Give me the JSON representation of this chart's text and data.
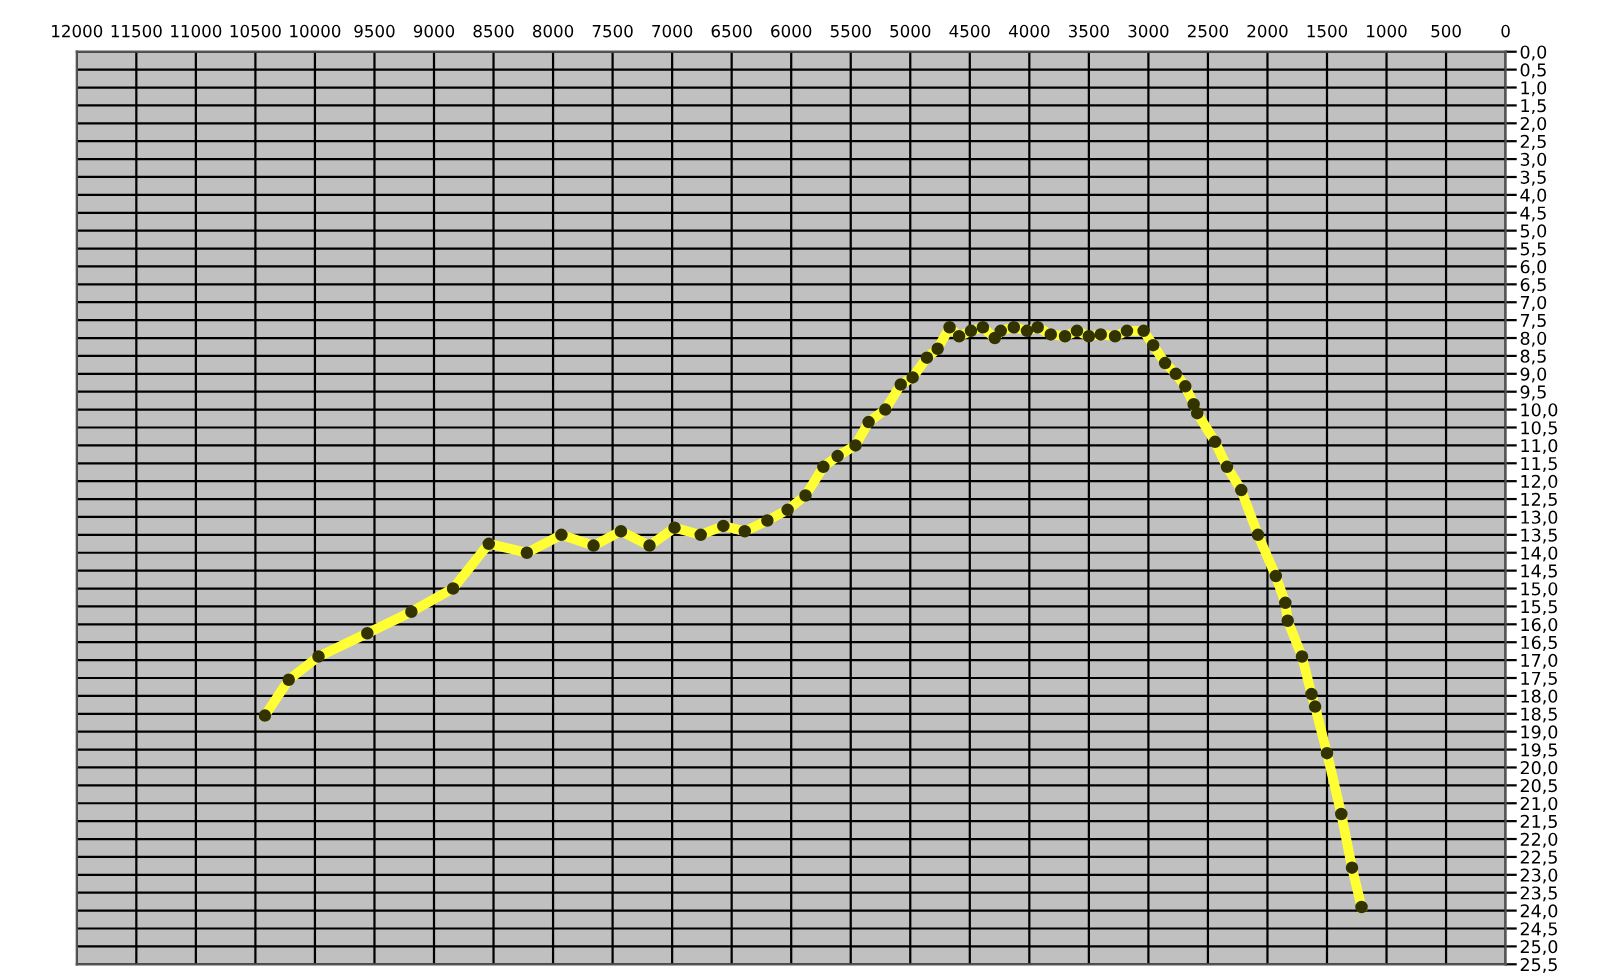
{
  "chart_data": {
    "type": "line",
    "marker": "circle",
    "line_style": "solid",
    "grid": true,
    "legend": false,
    "xlim": [
      12000,
      0
    ],
    "ylim": [
      25.5,
      0
    ],
    "xticks": [
      12000,
      11500,
      11000,
      10500,
      10000,
      9500,
      9000,
      8500,
      8000,
      7500,
      7000,
      6500,
      6000,
      5500,
      5000,
      4500,
      4000,
      3500,
      3000,
      2500,
      2000,
      1500,
      1000,
      500,
      0
    ],
    "yticks": [
      {
        "value": 0,
        "label": "0,0"
      },
      {
        "value": 0.5,
        "label": "0,5"
      },
      {
        "value": 1,
        "label": "1,0"
      },
      {
        "value": 1.5,
        "label": "1,5"
      },
      {
        "value": 2,
        "label": "2,0"
      },
      {
        "value": 2.5,
        "label": "2,5"
      },
      {
        "value": 3,
        "label": "3,0"
      },
      {
        "value": 3.5,
        "label": "3,5"
      },
      {
        "value": 4,
        "label": "4,0"
      },
      {
        "value": 4.5,
        "label": "4,5"
      },
      {
        "value": 5,
        "label": "5,0"
      },
      {
        "value": 5.5,
        "label": "5,5"
      },
      {
        "value": 6,
        "label": "6,0"
      },
      {
        "value": 6.5,
        "label": "6,5"
      },
      {
        "value": 7,
        "label": "7,0"
      },
      {
        "value": 7.5,
        "label": "7,5"
      },
      {
        "value": 8,
        "label": "8,0"
      },
      {
        "value": 8.5,
        "label": "8,5"
      },
      {
        "value": 9,
        "label": "9,0"
      },
      {
        "value": 9.5,
        "label": "9,5"
      },
      {
        "value": 10,
        "label": "10,0"
      },
      {
        "value": 10.5,
        "label": "10,5"
      },
      {
        "value": 11,
        "label": "11,0"
      },
      {
        "value": 11.5,
        "label": "11,5"
      },
      {
        "value": 12,
        "label": "12,0"
      },
      {
        "value": 12.5,
        "label": "12,5"
      },
      {
        "value": 13,
        "label": "13,0"
      },
      {
        "value": 13.5,
        "label": "13,5"
      },
      {
        "value": 14,
        "label": "14,0"
      },
      {
        "value": 14.5,
        "label": "14,5"
      },
      {
        "value": 15,
        "label": "15,0"
      },
      {
        "value": 15.5,
        "label": "15,5"
      },
      {
        "value": 16,
        "label": "16,0"
      },
      {
        "value": 16.5,
        "label": "16,5"
      },
      {
        "value": 17,
        "label": "17,0"
      },
      {
        "value": 17.5,
        "label": "17,5"
      },
      {
        "value": 18,
        "label": "18,0"
      },
      {
        "value": 18.5,
        "label": "18,5"
      },
      {
        "value": 19,
        "label": "19,0"
      },
      {
        "value": 19.5,
        "label": "19,5"
      },
      {
        "value": 20,
        "label": "20,0"
      },
      {
        "value": 20.5,
        "label": "20,5"
      },
      {
        "value": 21,
        "label": "21,0"
      },
      {
        "value": 21.5,
        "label": "21,5"
      },
      {
        "value": 22,
        "label": "22,0"
      },
      {
        "value": 22.5,
        "label": "22,5"
      },
      {
        "value": 23,
        "label": "23,0"
      },
      {
        "value": 23.5,
        "label": "23,5"
      },
      {
        "value": 24,
        "label": "24,0"
      },
      {
        "value": 24.5,
        "label": "24,5"
      },
      {
        "value": 25,
        "label": "25,0"
      },
      {
        "value": 25.5,
        "label": "25,5"
      }
    ],
    "series": [
      {
        "color": "#ffff33",
        "x": [
          10420,
          10220,
          9970,
          9560,
          9190,
          8840,
          8540,
          8220,
          7930,
          7660,
          7430,
          7190,
          6980,
          6760,
          6570,
          6390,
          6200,
          6030,
          5880,
          5730,
          5610,
          5460,
          5350,
          5210,
          5080,
          4980,
          4860,
          4770,
          4670,
          4590,
          4490,
          4390,
          4290,
          4240,
          4130,
          4020,
          3930,
          3820,
          3700,
          3600,
          3500,
          3400,
          3280,
          3180,
          3040,
          2960,
          2860,
          2770,
          2690,
          2620,
          2590,
          2440,
          2340,
          2220,
          2080,
          1930,
          1850,
          1830,
          1710,
          1630,
          1600,
          1500,
          1380,
          1290,
          1210
        ],
        "values": [
          18.55,
          17.55,
          16.9,
          16.25,
          15.65,
          15.0,
          13.75,
          14.0,
          13.5,
          13.8,
          13.4,
          13.8,
          13.3,
          13.5,
          13.25,
          13.4,
          13.1,
          12.8,
          12.4,
          11.6,
          11.3,
          11.0,
          10.35,
          10.0,
          9.3,
          9.1,
          8.55,
          8.3,
          7.7,
          7.95,
          7.8,
          7.7,
          8.0,
          7.8,
          7.7,
          7.8,
          7.7,
          7.9,
          7.95,
          7.8,
          7.95,
          7.9,
          7.95,
          7.8,
          7.8,
          8.2,
          8.7,
          9.0,
          9.35,
          9.85,
          10.1,
          10.9,
          11.6,
          12.25,
          13.5,
          14.65,
          15.4,
          15.9,
          16.9,
          17.95,
          18.3,
          19.6,
          21.3,
          22.8,
          23.9
        ]
      }
    ]
  }
}
